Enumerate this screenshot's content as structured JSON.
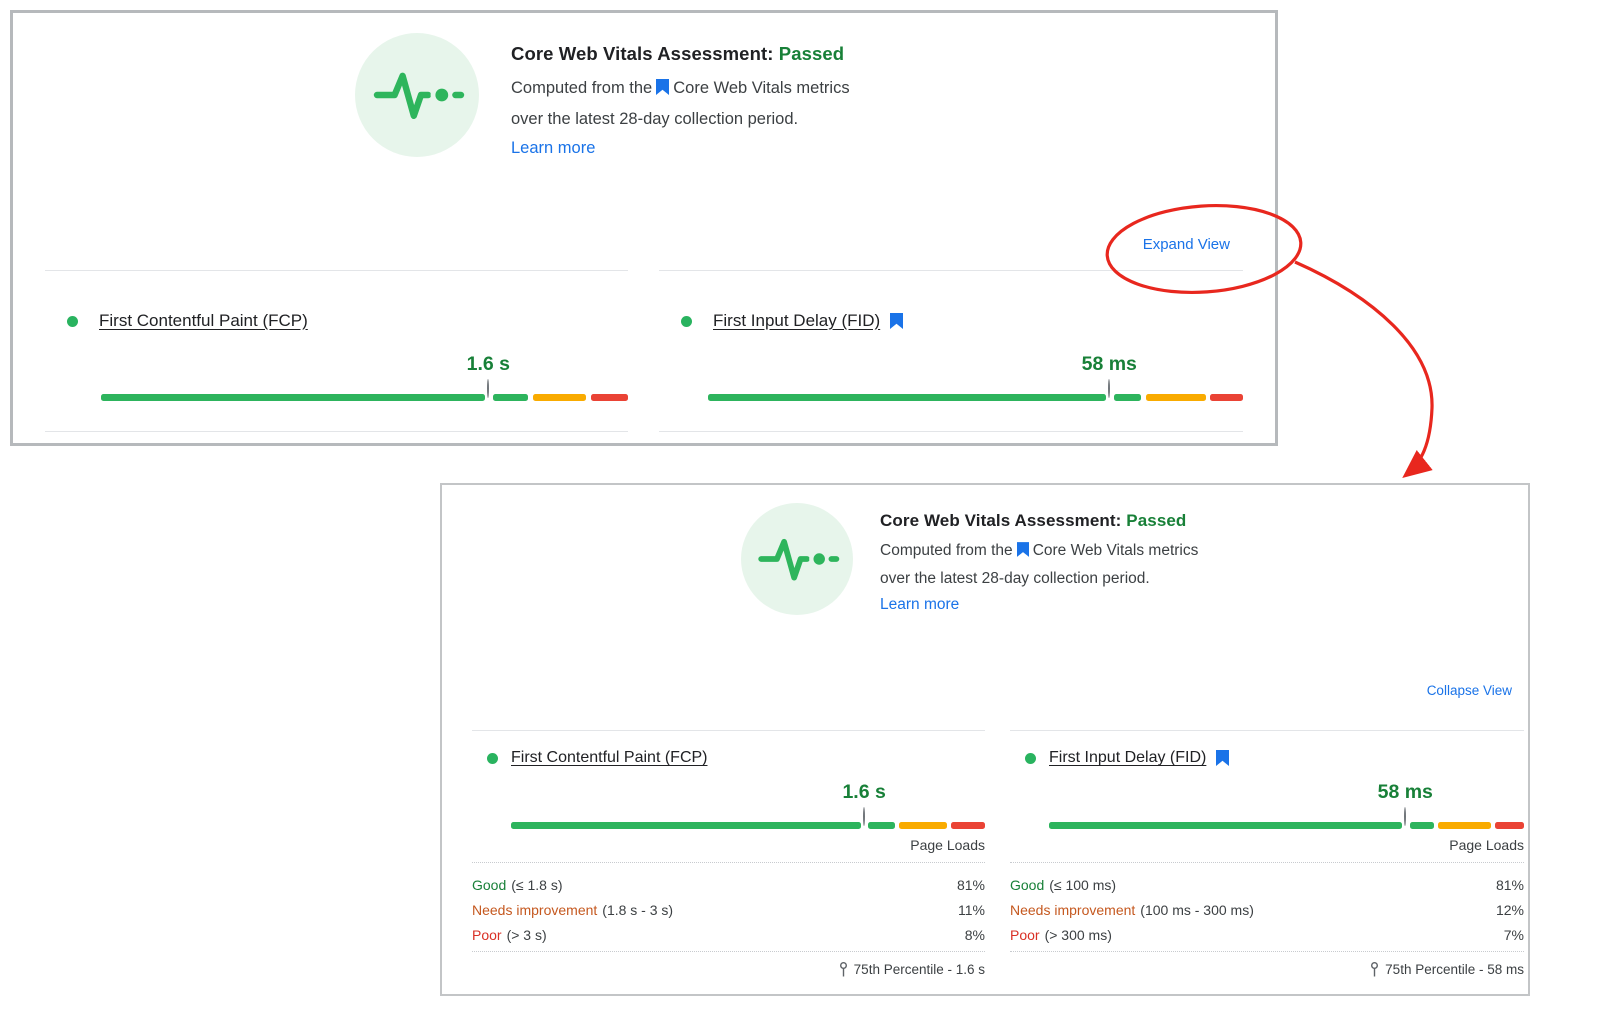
{
  "colors": {
    "bar_good": "#2db45d",
    "bar_ni": "#f9ab00",
    "bar_poor": "#ea4335",
    "status_good": "#188038",
    "ni_text": "#c5581f",
    "poor_text": "#d93025",
    "link_blue": "#1a73e8",
    "annotation_red": "#e8271e"
  },
  "panels": [
    {
      "header": {
        "title": "Core Web Vitals Assessment:",
        "status": "Passed",
        "desc_part1": "Computed from the",
        "desc_part2": "Core Web Vitals metrics",
        "desc_line2": "over the latest 28-day collection period.",
        "learn_more": "Learn more"
      },
      "action_link": "Expand View",
      "metrics": [
        {
          "title": "First Contentful Paint (FCP)",
          "value": "1.6 s",
          "bar": {
            "good_pct": 81,
            "ni_pct": 11,
            "poor_pct": 8,
            "marker_pct": 73.5
          }
        },
        {
          "title": "First Input Delay (FID)",
          "value": "58 ms",
          "bar": {
            "good_pct": 81,
            "ni_pct": 12,
            "poor_pct": 7,
            "marker_pct": 75
          }
        }
      ]
    },
    {
      "header": {
        "title": "Core Web Vitals Assessment:",
        "status": "Passed",
        "desc_part1": "Computed from the",
        "desc_part2": "Core Web Vitals metrics",
        "desc_line2": "over the latest 28-day collection period.",
        "learn_more": "Learn more"
      },
      "action_link": "Collapse View",
      "metrics": [
        {
          "title": "First Contentful Paint (FCP)",
          "value": "1.6 s",
          "bar": {
            "good_pct": 81,
            "ni_pct": 11,
            "poor_pct": 8,
            "marker_pct": 74.5
          },
          "table": {
            "col_header": "Page Loads",
            "rows": [
              {
                "label": "Good",
                "range": "(≤ 1.8 s)",
                "value": "81%"
              },
              {
                "label": "Needs improvement",
                "range": "(1.8 s - 3 s)",
                "value": "11%"
              },
              {
                "label": "Poor",
                "range": "(> 3 s)",
                "value": "8%"
              }
            ],
            "footer": "75th Percentile - 1.6 s"
          }
        },
        {
          "title": "First Input Delay (FID)",
          "value": "58 ms",
          "bar": {
            "good_pct": 81,
            "ni_pct": 12,
            "poor_pct": 7,
            "marker_pct": 75
          },
          "table": {
            "col_header": "Page Loads",
            "rows": [
              {
                "label": "Good",
                "range": "(≤ 100 ms)",
                "value": "81%"
              },
              {
                "label": "Needs improvement",
                "range": "(100 ms - 300 ms)",
                "value": "12%"
              },
              {
                "label": "Poor",
                "range": "(> 300 ms)",
                "value": "7%"
              }
            ],
            "footer": "75th Percentile - 58 ms"
          }
        }
      ]
    }
  ]
}
